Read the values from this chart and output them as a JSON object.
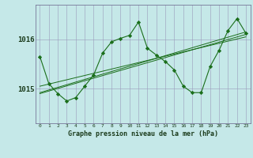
{
  "background_color": "#c5e8e8",
  "grid_color": "#9999bb",
  "line_color": "#1a6e1a",
  "marker_color": "#1a6e1a",
  "xlabel": "Graphe pression niveau de la mer (hPa)",
  "xlim": [
    -0.5,
    23.5
  ],
  "ylim": [
    1014.3,
    1016.7
  ],
  "yticks": [
    1015,
    1016
  ],
  "xticks": [
    0,
    1,
    2,
    3,
    4,
    5,
    6,
    7,
    8,
    9,
    10,
    11,
    12,
    13,
    14,
    15,
    16,
    17,
    18,
    19,
    20,
    21,
    22,
    23
  ],
  "main_series": {
    "x": [
      0,
      1,
      2,
      3,
      4,
      5,
      6,
      7,
      8,
      9,
      10,
      11,
      12,
      13,
      14,
      15,
      16,
      17,
      18,
      19,
      20,
      21,
      22,
      23
    ],
    "y": [
      1015.65,
      1015.1,
      1014.9,
      1014.75,
      1014.82,
      1015.05,
      1015.28,
      1015.72,
      1015.95,
      1016.02,
      1016.08,
      1016.35,
      1015.82,
      1015.68,
      1015.55,
      1015.38,
      1015.05,
      1014.92,
      1014.92,
      1015.45,
      1015.78,
      1016.18,
      1016.42,
      1016.12
    ]
  },
  "trend1": {
    "x": [
      0,
      23
    ],
    "y": [
      1014.9,
      1016.1
    ]
  },
  "trend2": {
    "x": [
      0,
      23
    ],
    "y": [
      1014.92,
      1016.15
    ]
  },
  "trend3": {
    "x": [
      0,
      23
    ],
    "y": [
      1015.05,
      1016.05
    ]
  },
  "figwidth": 3.2,
  "figheight": 2.0,
  "dpi": 100
}
